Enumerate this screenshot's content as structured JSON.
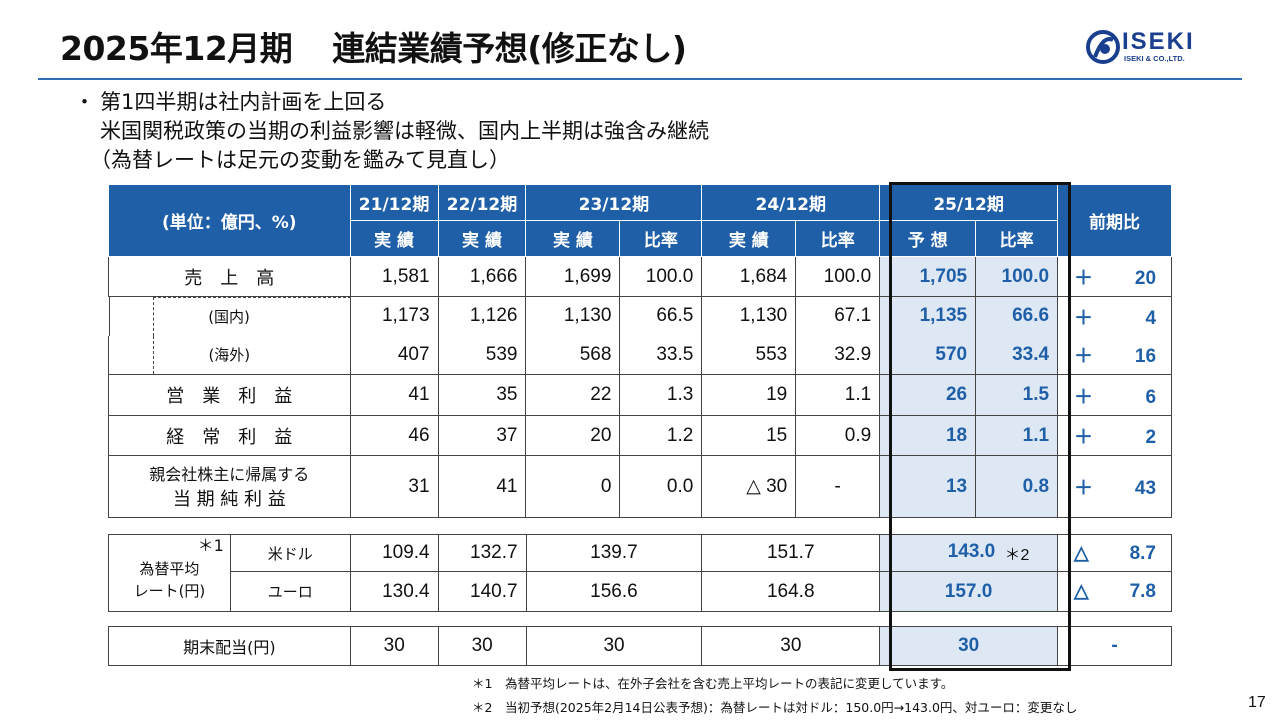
{
  "title": {
    "period": "2025年12月期",
    "main": "連結業績予想(修正なし)"
  },
  "logo": {
    "word": "ISEKI",
    "sub": "ISEKI & CO.,LTD."
  },
  "bullets": [
    "第1四半期は社内計画を上回る",
    "米国関税政策の当期の利益影響は軽微、国内上半期は強含み継続",
    "（為替レートは足元の変動を鑑みて見直し）"
  ],
  "table": {
    "unit": "(単位：億円、%)",
    "years": [
      "21/12期",
      "22/12期",
      "23/12期",
      "24/12期",
      "25/12期"
    ],
    "actual": "実 績",
    "ratio": "比率",
    "forecast": "予 想",
    "yoy": "前期比",
    "rows": [
      {
        "label": "売　上　高",
        "v21": "1,581",
        "v22": "1,666",
        "v23": "1,699",
        "r23": "100.0",
        "v24": "1,684",
        "r24": "100.0",
        "v25": "1,705",
        "r25": "100.0",
        "ds": "＋",
        "dv": "20"
      },
      {
        "label": "(国内)",
        "v21": "1,173",
        "v22": "1,126",
        "v23": "1,130",
        "r23": "66.5",
        "v24": "1,130",
        "r24": "67.1",
        "v25": "1,135",
        "r25": "66.6",
        "ds": "＋",
        "dv": "4"
      },
      {
        "label": "(海外)",
        "v21": "407",
        "v22": "539",
        "v23": "568",
        "r23": "33.5",
        "v24": "553",
        "r24": "32.9",
        "v25": "570",
        "r25": "33.4",
        "ds": "＋",
        "dv": "16"
      },
      {
        "label": "営　業　利　益",
        "v21": "41",
        "v22": "35",
        "v23": "22",
        "r23": "1.3",
        "v24": "19",
        "r24": "1.1",
        "v25": "26",
        "r25": "1.5",
        "ds": "＋",
        "dv": "6"
      },
      {
        "label": "経　常　利　益",
        "v21": "46",
        "v22": "37",
        "v23": "20",
        "r23": "1.2",
        "v24": "15",
        "r24": "0.9",
        "v25": "18",
        "r25": "1.1",
        "ds": "＋",
        "dv": "2"
      },
      {
        "label_l1": "親会社株主に帰属する",
        "label_l2": "当 期 純 利 益",
        "v21": "31",
        "v22": "41",
        "v23": "0",
        "r23": "0.0",
        "v24": "△ 30",
        "r24": "-",
        "v25": "13",
        "r25": "0.8",
        "ds": "＋",
        "dv": "43"
      }
    ]
  },
  "fx": {
    "label_l1": "為替平均",
    "label_l2": "レート(円)",
    "mark": "＊1",
    "rows": [
      {
        "ccy": "米ドル",
        "v21": "109.4",
        "v22": "132.7",
        "v23": "139.7",
        "v24": "151.7",
        "v25": "143.0",
        "mark": "＊2",
        "ds": "△",
        "dv": "8.7"
      },
      {
        "ccy": "ユーロ",
        "v21": "130.4",
        "v22": "140.7",
        "v23": "156.6",
        "v24": "164.8",
        "v25": "157.0",
        "ds": "△",
        "dv": "7.8"
      }
    ]
  },
  "dividend": {
    "label": "期末配当(円)",
    "v21": "30",
    "v22": "30",
    "v23": "30",
    "v24": "30",
    "v25": "30",
    "d": "-"
  },
  "footnotes": [
    "＊1　為替平均レートは、在外子会社を含む売上平均レートの表記に変更しています。",
    "＊2　当初予想(2025年2月14日公表予想)：為替レートは対ドル：150.0円→143.0円、対ユーロ：変更なし"
  ],
  "page_number": "17",
  "colors": {
    "accent": "#1f5fa8",
    "highlight": "#dde8f4",
    "rule": "#2e6db4"
  }
}
